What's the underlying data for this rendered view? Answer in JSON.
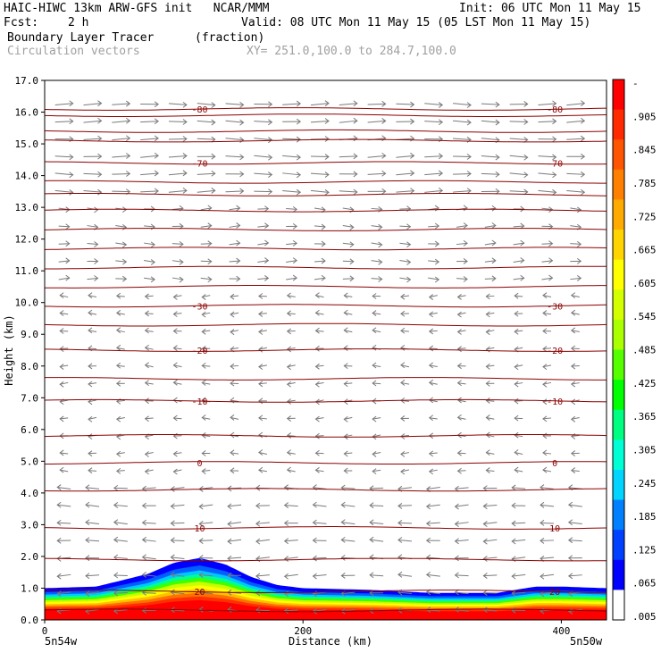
{
  "header": {
    "title_left": "HAIC-HIWC 13km ARW-GFS init   NCAR/MMM",
    "init": "Init: 06 UTC Mon 11 May 15",
    "fcst_label": "Fcst:",
    "fcst_value": "2 h",
    "valid": "Valid: 08 UTC Mon 11 May 15 (05 LST Mon 11 May 15)",
    "field_name": "Boundary Layer Tracer",
    "field_units": "(fraction)",
    "vectors_label": "Circulation vectors",
    "xy_label": "XY= 251.0,100.0 to 284.7,100.0"
  },
  "footer": {
    "left_label": "5n54w",
    "right_label": "5n50w",
    "xlabel": "Distance (km)"
  },
  "chart_data": {
    "type": "heatmap",
    "xlabel": "Distance (km)",
    "ylabel": "Height (km)",
    "xlim": [
      0,
      435
    ],
    "ylim": [
      0,
      17
    ],
    "x_ticks": [
      "0",
      "200",
      "400"
    ],
    "x_tick_values": [
      0,
      200,
      400
    ],
    "y_ticks": [
      "0.0",
      "1.0",
      "2.0",
      "3.0",
      "4.0",
      "5.0",
      "6.0",
      "7.0",
      "8.0",
      "9.0",
      "10.0",
      "11.0",
      "12.0",
      "13.0",
      "14.0",
      "15.0",
      "16.0",
      "17.0"
    ],
    "y_tick_values": [
      0,
      1,
      2,
      3,
      4,
      5,
      6,
      7,
      8,
      9,
      10,
      11,
      12,
      13,
      14,
      15,
      16,
      17
    ],
    "colorbar_labels": [
      "-",
      ".905",
      ".845",
      ".785",
      ".725",
      ".665",
      ".605",
      ".545",
      ".485",
      ".425",
      ".365",
      ".305",
      ".245",
      ".185",
      ".125",
      ".065",
      ".005"
    ],
    "colorbar_colors": [
      "#ff0000",
      "#ff2a00",
      "#ff5500",
      "#ff8000",
      "#ffaa00",
      "#ffd400",
      "#ffff00",
      "#d4ff00",
      "#aaff00",
      "#55ff00",
      "#00ff00",
      "#00ff80",
      "#00ffd4",
      "#00d4ff",
      "#0080ff",
      "#0040ff",
      "#0000ff",
      "#ffffff"
    ],
    "tracer_top_profile": {
      "x": [
        0,
        40,
        80,
        100,
        120,
        140,
        160,
        180,
        200,
        250,
        300,
        350,
        380,
        400,
        435
      ],
      "top": [
        1.0,
        1.05,
        1.45,
        1.8,
        1.95,
        1.75,
        1.35,
        1.1,
        1.0,
        0.95,
        0.85,
        0.85,
        1.05,
        1.05,
        1.0
      ]
    },
    "temperature_contours": [
      {
        "label": "-80",
        "height": 16.1
      },
      {
        "label": "-70",
        "height": 14.4
      },
      {
        "label": "-30",
        "height": 9.9
      },
      {
        "label": "-20",
        "height": 8.5
      },
      {
        "label": "-10",
        "height": 6.9
      },
      {
        "label": "0",
        "height": 4.95
      },
      {
        "label": "10",
        "height": 2.9
      },
      {
        "label": "20",
        "height": 0.9
      }
    ],
    "unlabeled_contour_heights": [
      0.3,
      1.9,
      4.1,
      5.8,
      7.6,
      9.3,
      10.5,
      11.1,
      11.7,
      12.3,
      12.9,
      13.4,
      13.8,
      15.1,
      15.4,
      15.9
    ],
    "wind_regimes": [
      {
        "from": 0,
        "to": 4.5,
        "direction": "westward"
      },
      {
        "from": 4.5,
        "to": 10.3,
        "direction": "westward-light"
      },
      {
        "from": 10.3,
        "to": 17,
        "direction": "eastward"
      }
    ],
    "grid": false
  }
}
